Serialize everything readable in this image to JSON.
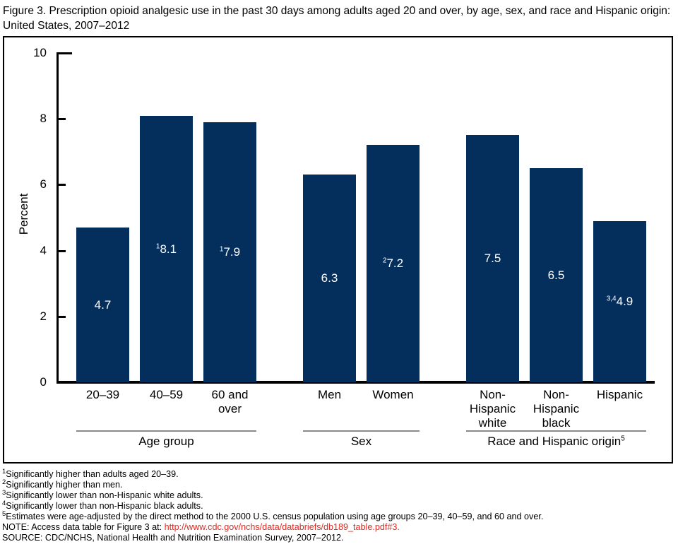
{
  "title": "Figure 3. Prescription opioid analgesic use in the past 30 days among adults aged 20 and over, by age, sex, and race and Hispanic origin: United States, 2007–2012",
  "chart_data": {
    "type": "bar",
    "title": "Prescription opioid analgesic use in the past 30 days among adults aged 20 and over, by age, sex, and race and Hispanic origin: United States, 2007–2012",
    "xlabel": "",
    "ylabel": "Percent",
    "ylim": [
      0,
      10
    ],
    "yticks": [
      0,
      2,
      4,
      6,
      8,
      10
    ],
    "grid": false,
    "legend": null,
    "bar_color": "#042F5C",
    "groups": [
      {
        "label": "Age group",
        "label_sup": "",
        "bars": [
          {
            "label_lines": [
              "20–39"
            ],
            "value": 4.7,
            "value_label": "4.7",
            "value_sup": ""
          },
          {
            "label_lines": [
              "40–59"
            ],
            "value": 8.1,
            "value_label": "8.1",
            "value_sup": "1"
          },
          {
            "label_lines": [
              "60 and",
              "over"
            ],
            "value": 7.9,
            "value_label": "7.9",
            "value_sup": "1"
          }
        ]
      },
      {
        "label": "Sex",
        "label_sup": "",
        "bars": [
          {
            "label_lines": [
              "Men"
            ],
            "value": 6.3,
            "value_label": "6.3",
            "value_sup": ""
          },
          {
            "label_lines": [
              "Women"
            ],
            "value": 7.2,
            "value_label": "7.2",
            "value_sup": "2"
          }
        ]
      },
      {
        "label": "Race and Hispanic origin",
        "label_sup": "5",
        "bars": [
          {
            "label_lines": [
              "Non-",
              "Hispanic",
              "white"
            ],
            "value": 7.5,
            "value_label": "7.5",
            "value_sup": ""
          },
          {
            "label_lines": [
              "Non-",
              "Hispanic",
              "black"
            ],
            "value": 6.5,
            "value_label": "6.5",
            "value_sup": ""
          },
          {
            "label_lines": [
              "Hispanic"
            ],
            "value": 4.9,
            "value_label": "4.9",
            "value_sup": "3,4"
          }
        ]
      }
    ]
  },
  "footnotes": [
    {
      "sup": "1",
      "text": "Significantly higher than adults aged 20–39."
    },
    {
      "sup": "2",
      "text": "Significantly higher than men."
    },
    {
      "sup": "3",
      "text": "Significantly lower than non-Hispanic white adults."
    },
    {
      "sup": "4",
      "text": "Significantly lower than non-Hispanic black adults."
    },
    {
      "sup": "5",
      "text": "Estimates were age-adjusted by the direct method to the 2000 U.S. census population using age groups 20–39, 40–59, and 60 and over."
    }
  ],
  "note": {
    "prefix": "NOTE: Access data table for Figure 3 at: ",
    "link_text": "http://www.cdc.gov/nchs/data/databriefs/db189_table.pdf#3."
  },
  "source": "SOURCE: CDC/NCHS, National Health and Nutrition Examination Survey, 2007–2012.",
  "colors": {
    "bar": "#042F5C",
    "link_red": "#E8261F",
    "group_line_gray": "#8A8A8A",
    "axis_black": "#000000"
  }
}
